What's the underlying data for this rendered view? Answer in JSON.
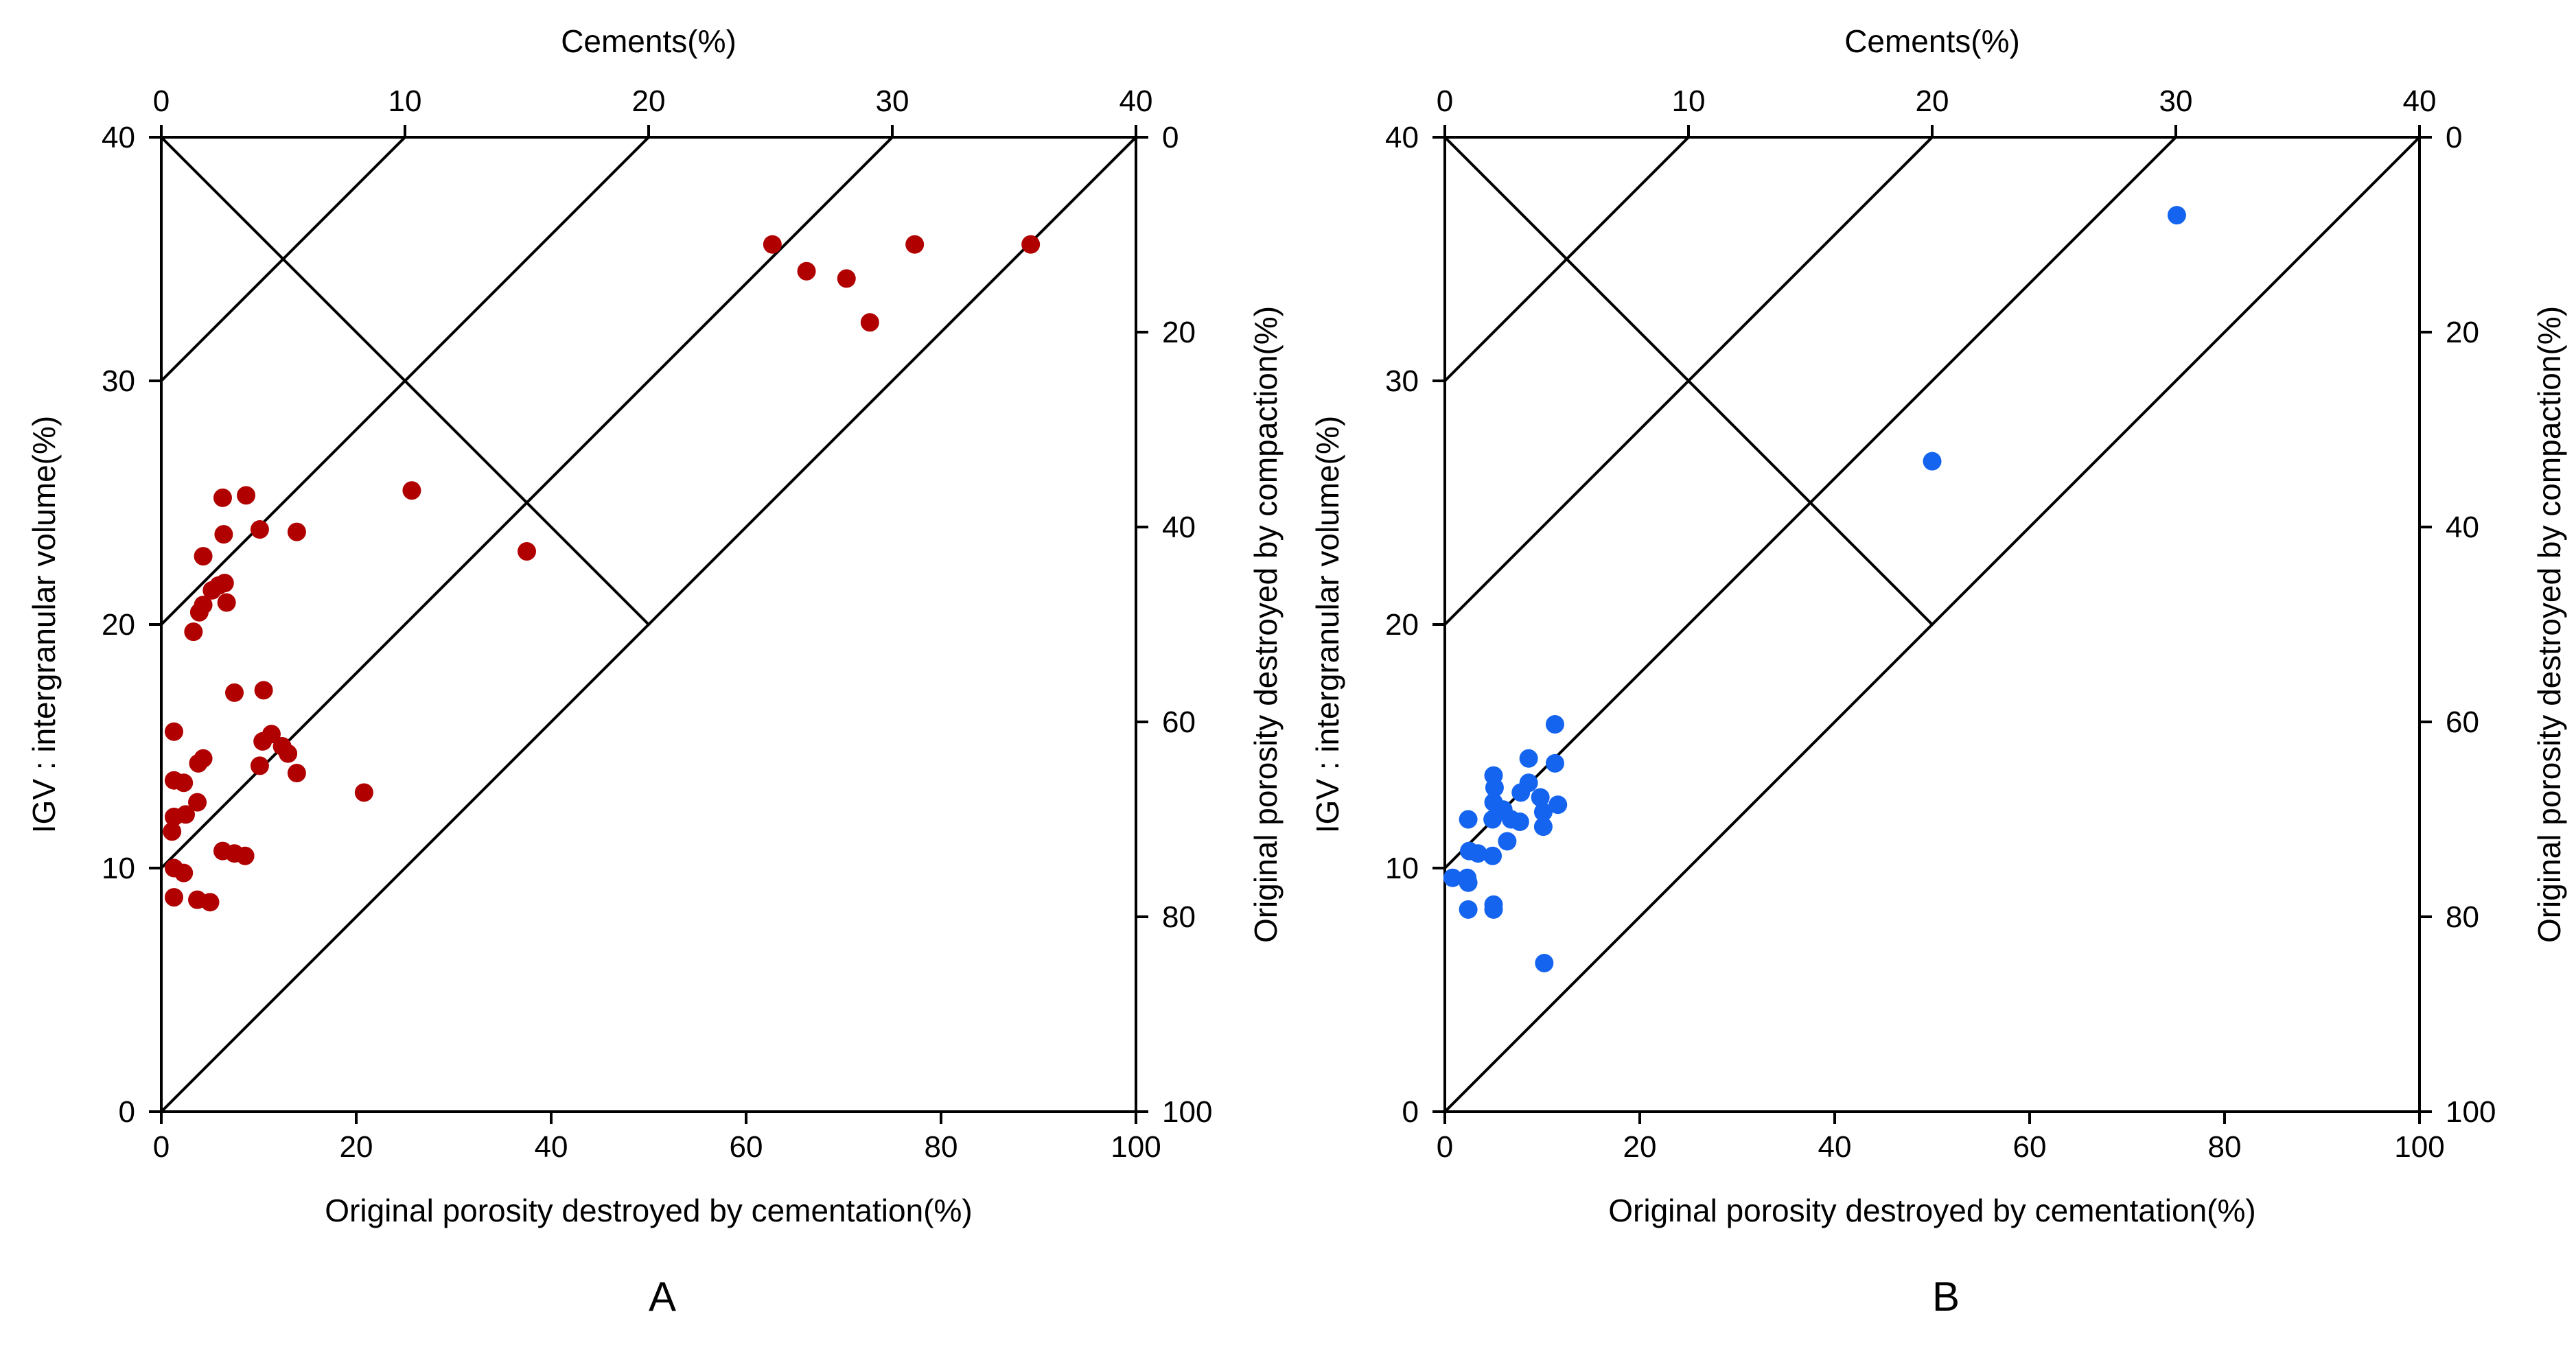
{
  "chart_data": [
    {
      "type": "scatter",
      "panel_label": "A",
      "xlabel": "Original porosity destroyed by cementation(%)",
      "ylabel": "IGV : intergranular volume(%)",
      "top_xlabel": "Cements(%)",
      "right_ylabel": "Original porosity destroyed by compaction(%)",
      "xlim": [
        0,
        100
      ],
      "ylim": [
        0,
        40
      ],
      "top_xlim": [
        0,
        40
      ],
      "right_ylim": [
        0,
        100
      ],
      "right_axis_inverted": true,
      "x_ticks": [
        "0",
        "20",
        "40",
        "60",
        "80",
        "100"
      ],
      "y_ticks": [
        "0",
        "10",
        "20",
        "30",
        "40"
      ],
      "top_ticks": [
        "0",
        "10",
        "20",
        "30",
        "40"
      ],
      "right_ticks": [
        "0",
        "20",
        "40",
        "60",
        "80",
        "100"
      ],
      "marker_color": "#b00000",
      "points": [
        [
          62.7,
          35.6
        ],
        [
          66.2,
          34.5
        ],
        [
          70.3,
          34.2
        ],
        [
          77.3,
          35.6
        ],
        [
          72.7,
          32.4
        ],
        [
          89.2,
          35.6
        ],
        [
          25.7,
          25.5
        ],
        [
          37.5,
          23.0
        ],
        [
          6.3,
          25.2
        ],
        [
          8.7,
          25.3
        ],
        [
          10.1,
          23.9
        ],
        [
          13.9,
          23.8
        ],
        [
          6.4,
          23.7
        ],
        [
          4.3,
          22.8
        ],
        [
          5.2,
          21.4
        ],
        [
          5.9,
          21.6
        ],
        [
          6.5,
          21.7
        ],
        [
          4.3,
          20.8
        ],
        [
          3.9,
          20.5
        ],
        [
          6.7,
          20.9
        ],
        [
          3.3,
          19.7
        ],
        [
          7.5,
          17.2
        ],
        [
          10.5,
          17.3
        ],
        [
          1.3,
          15.6
        ],
        [
          11.3,
          15.5
        ],
        [
          10.4,
          15.2
        ],
        [
          12.4,
          15.0
        ],
        [
          13.0,
          14.7
        ],
        [
          4.3,
          14.5
        ],
        [
          3.8,
          14.3
        ],
        [
          10.1,
          14.2
        ],
        [
          13.9,
          13.9
        ],
        [
          1.3,
          13.6
        ],
        [
          2.3,
          13.5
        ],
        [
          20.8,
          13.1
        ],
        [
          3.7,
          12.7
        ],
        [
          1.3,
          12.1
        ],
        [
          2.5,
          12.2
        ],
        [
          1.1,
          11.5
        ],
        [
          6.3,
          10.7
        ],
        [
          7.5,
          10.6
        ],
        [
          8.6,
          10.5
        ],
        [
          1.3,
          10.0
        ],
        [
          2.3,
          9.8
        ],
        [
          1.3,
          8.8
        ],
        [
          3.7,
          8.7
        ],
        [
          5.0,
          8.6
        ]
      ]
    },
    {
      "type": "scatter",
      "panel_label": "B",
      "xlabel": "Original porosity destroyed by cementation(%)",
      "ylabel": "IGV : intergranular volume(%)",
      "top_xlabel": "Cements(%)",
      "right_ylabel": "Original porosity destroyed by compaction(%)",
      "xlim": [
        0,
        100
      ],
      "ylim": [
        0,
        40
      ],
      "top_xlim": [
        0,
        40
      ],
      "right_ylim": [
        0,
        100
      ],
      "right_axis_inverted": true,
      "x_ticks": [
        "0",
        "20",
        "40",
        "60",
        "80",
        "100"
      ],
      "y_ticks": [
        "0",
        "10",
        "20",
        "30",
        "40"
      ],
      "top_ticks": [
        "0",
        "10",
        "20",
        "30",
        "40"
      ],
      "right_ticks": [
        "0",
        "20",
        "40",
        "60",
        "80",
        "100"
      ],
      "marker_color": "#1464f0",
      "points": [
        [
          75.1,
          36.8
        ],
        [
          50.0,
          26.7
        ],
        [
          11.3,
          15.9
        ],
        [
          8.6,
          14.5
        ],
        [
          11.3,
          14.3
        ],
        [
          5.0,
          13.8
        ],
        [
          5.1,
          13.3
        ],
        [
          8.6,
          13.5
        ],
        [
          7.8,
          13.1
        ],
        [
          9.8,
          12.9
        ],
        [
          5.0,
          12.7
        ],
        [
          6.0,
          12.4
        ],
        [
          11.6,
          12.6
        ],
        [
          10.1,
          12.3
        ],
        [
          2.4,
          12.0
        ],
        [
          4.9,
          12.0
        ],
        [
          6.8,
          12.0
        ],
        [
          7.7,
          11.9
        ],
        [
          10.1,
          11.7
        ],
        [
          6.4,
          11.1
        ],
        [
          2.5,
          10.7
        ],
        [
          3.4,
          10.6
        ],
        [
          4.9,
          10.5
        ],
        [
          0.8,
          9.6
        ],
        [
          2.3,
          9.6
        ],
        [
          2.4,
          9.4
        ],
        [
          5.0,
          8.5
        ],
        [
          2.4,
          8.3
        ],
        [
          5.0,
          8.3
        ],
        [
          10.2,
          6.1
        ]
      ]
    }
  ]
}
